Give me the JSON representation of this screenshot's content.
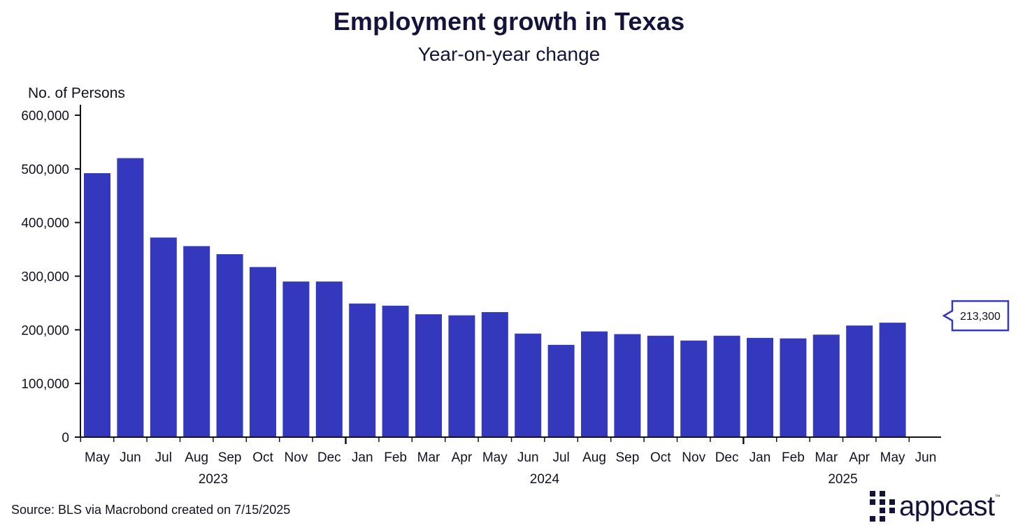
{
  "title": "Employment growth in Texas",
  "subtitle": "Year-on-year change",
  "source": "Source: BLS via Macrobond created on 7/15/2025",
  "logo_text": "appcast",
  "logo_tm": "™",
  "colors": {
    "bar": "#3338BD",
    "axis": "#111122",
    "callout_border": "#3338BD",
    "text": "#14143a"
  },
  "chart_data": {
    "type": "bar",
    "ylabel": "No. of Persons",
    "ylim": [
      0,
      600000
    ],
    "yticks": [
      0,
      100000,
      200000,
      300000,
      400000,
      500000,
      600000
    ],
    "ytick_labels": [
      "0",
      "100,000",
      "200,000",
      "300,000",
      "400,000",
      "500,000",
      "600,000"
    ],
    "categories": [
      "May",
      "Jun",
      "Jul",
      "Aug",
      "Sep",
      "Oct",
      "Nov",
      "Dec",
      "Jan",
      "Feb",
      "Mar",
      "Apr",
      "May",
      "Jun",
      "Jul",
      "Aug",
      "Sep",
      "Oct",
      "Nov",
      "Dec",
      "Jan",
      "Feb",
      "Mar",
      "Apr",
      "May",
      "Jun"
    ],
    "values": [
      492000,
      520000,
      372000,
      356000,
      341000,
      317000,
      290000,
      290000,
      249000,
      245000,
      229000,
      227000,
      233000,
      193000,
      172000,
      197000,
      192000,
      189000,
      180000,
      189000,
      185000,
      184000,
      191000,
      208000,
      213300,
      null
    ],
    "year_labels": [
      {
        "label": "2023",
        "start": 0,
        "end": 7
      },
      {
        "label": "2024",
        "start": 8,
        "end": 19
      },
      {
        "label": "2025",
        "start": 20,
        "end": 25
      }
    ],
    "callout": {
      "text": "213,300",
      "value": 213300
    },
    "grid": false,
    "legend": "none"
  }
}
